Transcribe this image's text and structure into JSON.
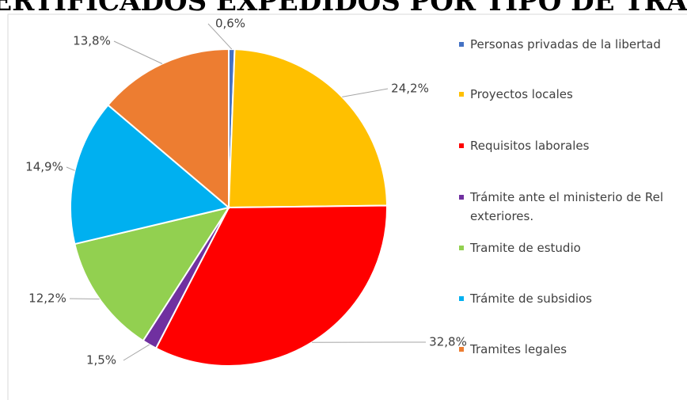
{
  "chart_data": {
    "type": "pie",
    "title": "DE CERTIFICADOS EXPEDIDOS POR TIPO DE TRÁMITE",
    "categories": [
      "Personas privadas de la libertad",
      "Proyectos locales",
      "Requisitos laborales",
      "Trámite ante el ministerio de Rel exteriores.",
      "Tramite de estudio",
      "Trámite de subsidios",
      "Tramites legales"
    ],
    "values": [
      0.6,
      24.2,
      32.8,
      1.5,
      12.2,
      14.9,
      13.8
    ],
    "value_labels": [
      "0,6%",
      "24,2%",
      "32,8%",
      "1,5%",
      "12,2%",
      "14,9%",
      "13,8%"
    ],
    "colors": [
      "#4472c4",
      "#ffc000",
      "#ff0000",
      "#7030a0",
      "#92d050",
      "#00b0f0",
      "#ed7d31"
    ],
    "legend": "right"
  }
}
